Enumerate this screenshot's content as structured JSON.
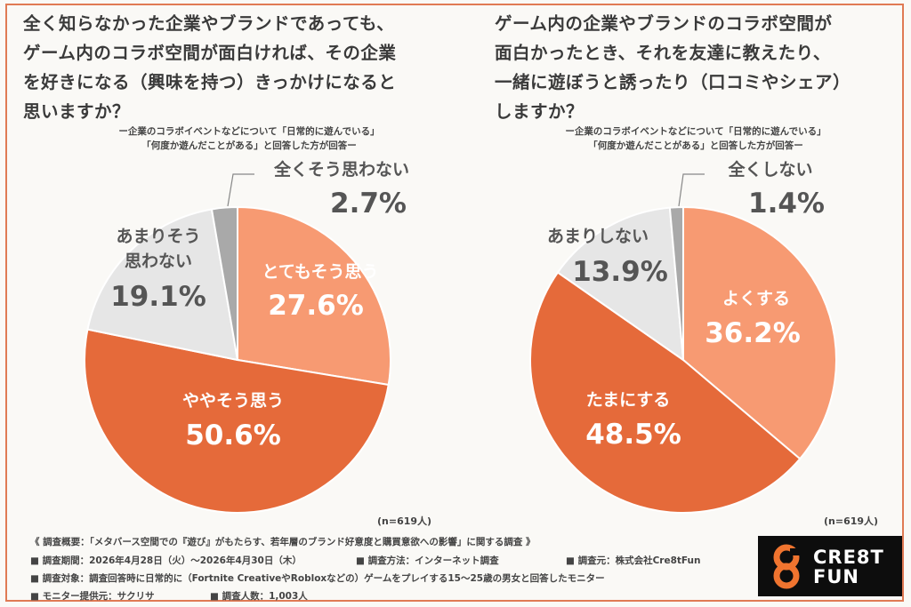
{
  "chart_data": [
    {
      "type": "pie",
      "title": "全く知らなかった企業やブランドであっても、\nゲーム内のコラボ空間が面白ければ、その企業\nを好きになる（興味を持つ）きっかけになると\n思いますか？",
      "subtitle": "ー企業のコラボイベントなどについて「日常的に遊んでいる」\n「何度か遊んだことがある」と回答した方が回答ー",
      "sample": "(n=619人)",
      "slices": [
        {
          "label": "とてもそう思う",
          "value": 27.6,
          "value_label": "27.6%",
          "color": "#f79a72"
        },
        {
          "label": "ややそう思う",
          "value": 50.6,
          "value_label": "50.6%",
          "color": "#e56a3a"
        },
        {
          "label": "あまりそう\n思わない",
          "value": 19.1,
          "value_label": "19.1%",
          "color": "#e6e6e6"
        },
        {
          "label": "全くそう思わない",
          "value": 2.7,
          "value_label": "2.7%",
          "color": "#a9a9a9"
        }
      ]
    },
    {
      "type": "pie",
      "title": "ゲーム内の企業やブランドのコラボ空間が\n面白かったとき、それを友達に教えたり、\n一緒に遊ぼうと誘ったり（口コミやシェア）\nしますか？",
      "subtitle": "ー企業のコラボイベントなどについて「日常的に遊んでいる」\n「何度か遊んだことがある」と回答した方が回答ー",
      "sample": "(n=619人)",
      "slices": [
        {
          "label": "よくする",
          "value": 36.2,
          "value_label": "36.2%",
          "color": "#f79a72"
        },
        {
          "label": "たまにする",
          "value": 48.5,
          "value_label": "48.5%",
          "color": "#e56a3a"
        },
        {
          "label": "あまりしない",
          "value": 13.9,
          "value_label": "13.9%",
          "color": "#e6e6e6"
        },
        {
          "label": "全くしない",
          "value": 1.4,
          "value_label": "1.4%",
          "color": "#a9a9a9"
        }
      ]
    }
  ],
  "footer": {
    "overview": "《 調査概要：「メタバース空間での『遊び』がもたらす、若年層のブランド好意度と購買意欲への影響」に関する調査 》",
    "period": "■ 調査期間：2026年4月28日（火）〜2026年4月30日（木）",
    "method": "■ 調査方法：インターネット調査",
    "source": "■ 調査元：株式会社Cre8tFun",
    "target": "■ 調査対象：調査回答時に日常的に（Fortnite CreativeやRobloxなどの）ゲームをプレイする15〜25歳の男女と回答したモニター",
    "provider": "■ モニター提供元：サクリサ",
    "count": "■ 調査人数：1,003人"
  },
  "logo": {
    "line1": "CRE8T",
    "line2": "FUN",
    "accent": "#f0742f"
  }
}
